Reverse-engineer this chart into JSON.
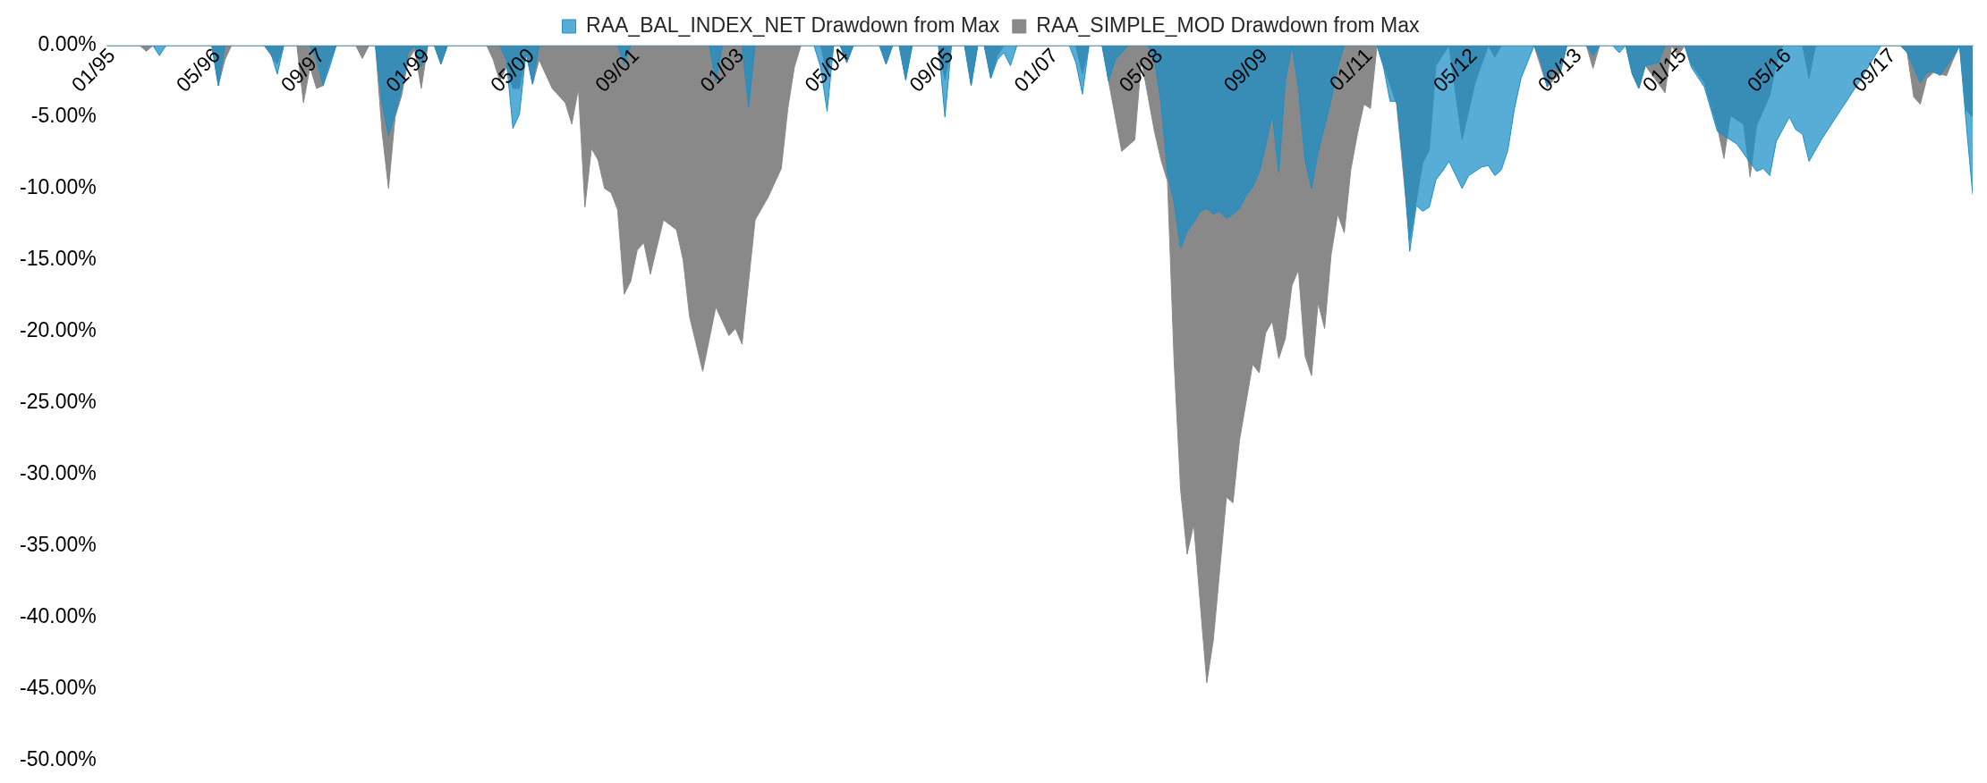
{
  "chart_data": {
    "type": "area",
    "xlim": [
      "1995-01",
      "2018-10"
    ],
    "xticks": [
      {
        "value": "1995-01",
        "label": "01/95"
      },
      {
        "value": "1996-05",
        "label": "05/96"
      },
      {
        "value": "1997-09",
        "label": "09/97"
      },
      {
        "value": "1999-01",
        "label": "01/99"
      },
      {
        "value": "2000-05",
        "label": "05/00"
      },
      {
        "value": "2001-09",
        "label": "09/01"
      },
      {
        "value": "2003-01",
        "label": "01/03"
      },
      {
        "value": "2004-05",
        "label": "05/04"
      },
      {
        "value": "2005-09",
        "label": "09/05"
      },
      {
        "value": "2007-01",
        "label": "01/07"
      },
      {
        "value": "2008-05",
        "label": "05/08"
      },
      {
        "value": "2009-09",
        "label": "09/09"
      },
      {
        "value": "2011-01",
        "label": "01/11"
      },
      {
        "value": "2012-05",
        "label": "05/12"
      },
      {
        "value": "2013-09",
        "label": "09/13"
      },
      {
        "value": "2015-01",
        "label": "01/15"
      },
      {
        "value": "2016-05",
        "label": "05/16"
      },
      {
        "value": "2017-09",
        "label": "09/17"
      }
    ],
    "ylim": [
      -50,
      0
    ],
    "yticks": [
      {
        "value": 0,
        "label": "0.00%"
      },
      {
        "value": -5,
        "label": "-5.00%"
      },
      {
        "value": -10,
        "label": "-10.00%"
      },
      {
        "value": -15,
        "label": "-15.00%"
      },
      {
        "value": -20,
        "label": "-20.00%"
      },
      {
        "value": -25,
        "label": "-25.00%"
      },
      {
        "value": -30,
        "label": "-30.00%"
      },
      {
        "value": -35,
        "label": "-35.00%"
      },
      {
        "value": -40,
        "label": "-40.00%"
      },
      {
        "value": -45,
        "label": "-45.00%"
      },
      {
        "value": -50,
        "label": "-50.00%"
      }
    ],
    "legend": "top",
    "series": [
      {
        "name": "RAA_BAL_INDEX_NET Drawdown from Max",
        "color": "#1b8fc9",
        "x": [
          "1995-01",
          "1995-08",
          "1995-09",
          "1995-10",
          "1996-05",
          "1996-06",
          "1996-07",
          "1997-01",
          "1997-02",
          "1997-03",
          "1997-04",
          "1997-08",
          "1997-09",
          "1997-10",
          "1997-11",
          "1997-12",
          "1998-06",
          "1998-07",
          "1998-08",
          "1998-09",
          "1998-10",
          "1998-11",
          "1998-12",
          "1999-01",
          "1999-02",
          "1999-03",
          "1999-04",
          "1999-05",
          "2000-01",
          "2000-02",
          "2000-03",
          "2000-04",
          "2000-05",
          "2000-06",
          "2000-07",
          "2001-07",
          "2001-08",
          "2001-09",
          "2002-09",
          "2002-10",
          "2002-11",
          "2003-02",
          "2003-03",
          "2003-04",
          "2004-01",
          "2004-02",
          "2004-03",
          "2004-04",
          "2004-05",
          "2004-06",
          "2004-07",
          "2004-11",
          "2004-12",
          "2005-01",
          "2005-02",
          "2005-03",
          "2005-04",
          "2005-08",
          "2005-09",
          "2005-10",
          "2005-12",
          "2006-01",
          "2006-02",
          "2006-03",
          "2006-04",
          "2006-05",
          "2006-06",
          "2006-07",
          "2006-08",
          "2007-04",
          "2007-05",
          "2007-06",
          "2007-07",
          "2007-09",
          "2007-10",
          "2007-11",
          "2007-12",
          "2008-01",
          "2008-04",
          "2008-05",
          "2008-06",
          "2008-07",
          "2008-08",
          "2008-09",
          "2008-10",
          "2008-11",
          "2008-12",
          "2009-01",
          "2009-02",
          "2009-03",
          "2009-04",
          "2009-05",
          "2009-06",
          "2009-07",
          "2009-08",
          "2009-09",
          "2009-10",
          "2009-11",
          "2009-12",
          "2010-01",
          "2010-02",
          "2010-03",
          "2010-04",
          "2010-05",
          "2010-06",
          "2010-08",
          "2010-09",
          "2010-10",
          "2011-03",
          "2011-04",
          "2011-05",
          "2011-06",
          "2011-07",
          "2011-08",
          "2011-09",
          "2011-10",
          "2011-11",
          "2011-12",
          "2012-01",
          "2012-02",
          "2012-04",
          "2012-05",
          "2012-07",
          "2012-08",
          "2012-09",
          "2012-10",
          "2012-11",
          "2012-12",
          "2013-01",
          "2013-03",
          "2013-04",
          "2013-05",
          "2013-06",
          "2013-07",
          "2013-08",
          "2013-11",
          "2013-12",
          "2014-01",
          "2014-03",
          "2014-04",
          "2014-05",
          "2014-06",
          "2014-07",
          "2014-08",
          "2014-10",
          "2014-11",
          "2015-02",
          "2015-03",
          "2015-05",
          "2015-07",
          "2015-08",
          "2015-10",
          "2015-12",
          "2016-01",
          "2016-02",
          "2016-03",
          "2016-04",
          "2016-06",
          "2016-07",
          "2016-08",
          "2016-09",
          "2016-11",
          "2017-02",
          "2017-05",
          "2017-08",
          "2017-11",
          "2017-12",
          "2018-02",
          "2018-03",
          "2018-04",
          "2018-05",
          "2018-07",
          "2018-08",
          "2018-09",
          "2018-10"
        ],
        "values": [
          0,
          0,
          -0.7,
          0,
          0,
          -2.8,
          0,
          0,
          -0.5,
          -2,
          0,
          0,
          -1,
          -2.8,
          -1.5,
          0,
          0,
          -4,
          -6.3,
          -4.8,
          -3,
          -0.5,
          0,
          -1.5,
          0,
          0,
          -1.3,
          0,
          0,
          -1,
          -5.8,
          -4.8,
          -0.5,
          -2.7,
          0,
          0,
          -1.3,
          0,
          0,
          -2.5,
          0,
          0,
          -4.3,
          0,
          0,
          -1.5,
          -4.6,
          0,
          0,
          -1.2,
          0,
          0,
          -1.3,
          0,
          0,
          -2.4,
          0,
          0,
          -5,
          0,
          0,
          -2.8,
          0,
          0,
          -2.3,
          -1,
          -0.5,
          -1.4,
          0,
          0,
          -1.2,
          -3.4,
          0,
          0,
          -2.5,
          -1,
          -0.5,
          0,
          0,
          -1,
          -4,
          -9,
          -11,
          -14.2,
          -13,
          -12.4,
          -11.6,
          -11.4,
          -11.8,
          -11.6,
          -12.1,
          -11.8,
          -11.4,
          -10.5,
          -9.9,
          -8.9,
          -7,
          -4.8,
          -8.9,
          -2.5,
          0,
          -3,
          -8,
          -10,
          -7.5,
          -3.8,
          -1.5,
          0,
          0,
          -1.5,
          -3.9,
          -3.9,
          -8,
          -14.4,
          -11.2,
          -11.6,
          -11.3,
          -9.4,
          -8.8,
          -8.1,
          -10,
          -9.1,
          -8.5,
          -8.4,
          -9.1,
          -8.7,
          -7.3,
          -4.4,
          -2.3,
          0,
          -1,
          -2.9,
          -1.5,
          -1.9,
          0,
          0,
          -0.7,
          0,
          0,
          -0.5,
          0,
          -2,
          -3,
          -1.4,
          -1.2,
          0,
          0,
          -1.5,
          -2.9,
          -6,
          -6.3,
          -6.9,
          -8.2,
          -8.8,
          -8.6,
          -9.1,
          -6.7,
          -5,
          -5.9,
          -6.2,
          -8.1,
          -6.5,
          -4.4,
          -2.3,
          0,
          0,
          -0.5,
          -2.6,
          -1.9,
          -1.8,
          -2.1,
          -0.8,
          0,
          -5.4,
          -10.4
        ]
      },
      {
        "name": "RAA_SIMPLE_MOD Drawdown from Max",
        "color": "#898989",
        "x": [
          "1995-01",
          "1995-06",
          "1995-07",
          "1995-08",
          "1996-05",
          "1996-06",
          "1996-07",
          "1996-08",
          "1997-01",
          "1997-03",
          "1997-04",
          "1997-06",
          "1997-07",
          "1997-08",
          "1997-09",
          "1997-10",
          "1997-11",
          "1997-12",
          "1998-03",
          "1998-04",
          "1998-05",
          "1998-06",
          "1998-07",
          "1998-08",
          "1998-09",
          "1998-10",
          "1998-11",
          "1998-12",
          "1999-01",
          "1999-02",
          "1999-03",
          "1999-04",
          "1999-05",
          "1999-11",
          "1999-12",
          "2000-01",
          "2000-02",
          "2000-03",
          "2000-04",
          "2000-05",
          "2000-06",
          "2000-07",
          "2000-08",
          "2000-09",
          "2000-11",
          "2000-12",
          "2001-01",
          "2001-02",
          "2001-03",
          "2001-04",
          "2001-05",
          "2001-06",
          "2001-07",
          "2001-08",
          "2001-09",
          "2001-10",
          "2001-11",
          "2001-12",
          "2002-02",
          "2002-04",
          "2002-05",
          "2002-06",
          "2002-08",
          "2002-10",
          "2002-12",
          "2003-01",
          "2003-02",
          "2003-04",
          "2003-06",
          "2003-08",
          "2003-09",
          "2003-10",
          "2003-11",
          "2004-02",
          "2004-03",
          "2004-04",
          "2004-05",
          "2004-06",
          "2004-07",
          "2004-11",
          "2004-12",
          "2005-01",
          "2005-02",
          "2005-03",
          "2005-04",
          "2005-08",
          "2005-09",
          "2005-10",
          "2005-12",
          "2006-01",
          "2006-02",
          "2006-03",
          "2006-04",
          "2006-05",
          "2006-06",
          "2007-05",
          "2007-06",
          "2007-07",
          "2007-09",
          "2007-10",
          "2007-12",
          "2008-02",
          "2008-03",
          "2008-05",
          "2008-06",
          "2008-07",
          "2008-08",
          "2008-09",
          "2008-10",
          "2008-11",
          "2009-01",
          "2009-02",
          "2009-04",
          "2009-05",
          "2009-06",
          "2009-08",
          "2009-09",
          "2009-10",
          "2009-11",
          "2009-12",
          "2010-01",
          "2010-02",
          "2010-03",
          "2010-04",
          "2010-05",
          "2010-06",
          "2010-07",
          "2010-08",
          "2010-09",
          "2010-10",
          "2010-11",
          "2010-12",
          "2011-01",
          "2011-02",
          "2011-03",
          "2011-04",
          "2011-06",
          "2011-08",
          "2011-10",
          "2011-11",
          "2011-12",
          "2012-02",
          "2012-04",
          "2012-06",
          "2012-08",
          "2012-09",
          "2012-10",
          "2013-03",
          "2013-05",
          "2013-07",
          "2013-08",
          "2013-11",
          "2013-12",
          "2014-01",
          "2014-05",
          "2014-06",
          "2014-07",
          "2014-08",
          "2014-11",
          "2014-12",
          "2015-01",
          "2015-02",
          "2015-03",
          "2015-05",
          "2015-07",
          "2015-08",
          "2015-09",
          "2015-11",
          "2015-12",
          "2016-01",
          "2016-03",
          "2016-04",
          "2016-05",
          "2016-08",
          "2016-09",
          "2016-10",
          "2017-11",
          "2017-12",
          "2018-01",
          "2018-02",
          "2018-03",
          "2018-04",
          "2018-06",
          "2018-07",
          "2018-08",
          "2018-09",
          "2018-10"
        ],
        "values": [
          0,
          0,
          -0.4,
          0,
          0,
          -2.8,
          -1,
          0,
          0,
          -1.3,
          0,
          0,
          -4,
          -1.5,
          -3,
          -2.8,
          -1.2,
          0,
          0,
          -0.9,
          0,
          0,
          -6,
          -10,
          -5,
          -3.5,
          -1,
          -0.3,
          -3,
          0,
          0,
          -1.3,
          0,
          0,
          -1,
          -2.5,
          -1.5,
          -3,
          -3,
          -0.5,
          -2.7,
          -1,
          -2,
          -3,
          -4,
          -5.5,
          -3,
          -11.3,
          -7.2,
          -8,
          -10,
          -10.3,
          -11.5,
          -17.4,
          -16.5,
          -14.3,
          -13.8,
          -16,
          -12.2,
          -12.9,
          -15,
          -19,
          -22.8,
          -18.3,
          -20.3,
          -19.8,
          -20.9,
          -12.2,
          -10.6,
          -8.6,
          -4.4,
          -1.5,
          0,
          0,
          -2,
          0,
          0,
          -1.2,
          0,
          0,
          -1.3,
          0,
          0,
          -2.4,
          0,
          0,
          -2.4,
          0,
          0,
          -2.8,
          0,
          0,
          -2.3,
          -0.7,
          0,
          0,
          -2,
          0,
          0,
          -2.5,
          -7.4,
          -6.6,
          -1,
          -6,
          -8,
          -9.5,
          -22,
          -31.1,
          -35.6,
          -33.5,
          -44.6,
          -41.6,
          -31.6,
          -32,
          -27.6,
          -22.3,
          -22.9,
          -20.1,
          -19.3,
          -21.9,
          -20.5,
          -16.8,
          -15.7,
          -21.7,
          -23.1,
          -18,
          -19.8,
          -14.6,
          -11.8,
          -13.1,
          -8.7,
          -6.2,
          -4.1,
          -4.4,
          0,
          -1.4,
          -4.1,
          -13.6,
          -8.2,
          -7.3,
          -1.4,
          0,
          -6.6,
          -2.6,
          0,
          -0.8,
          0,
          0,
          -2.9,
          -1.9,
          0,
          0,
          -1.6,
          0,
          0,
          -2,
          -3,
          -1.4,
          -3.3,
          0,
          -0.7,
          0,
          -1.3,
          -2.6,
          -5.7,
          -7.9,
          -4.9,
          -5.5,
          -9.2,
          -5.6,
          -3.5,
          -1.3,
          0,
          0,
          -2.3,
          0,
          0,
          -0.5,
          -3.6,
          -4.1,
          -2.3,
          -1.9,
          -2.1,
          -1,
          0,
          -4.5,
          -5
        ]
      }
    ]
  }
}
